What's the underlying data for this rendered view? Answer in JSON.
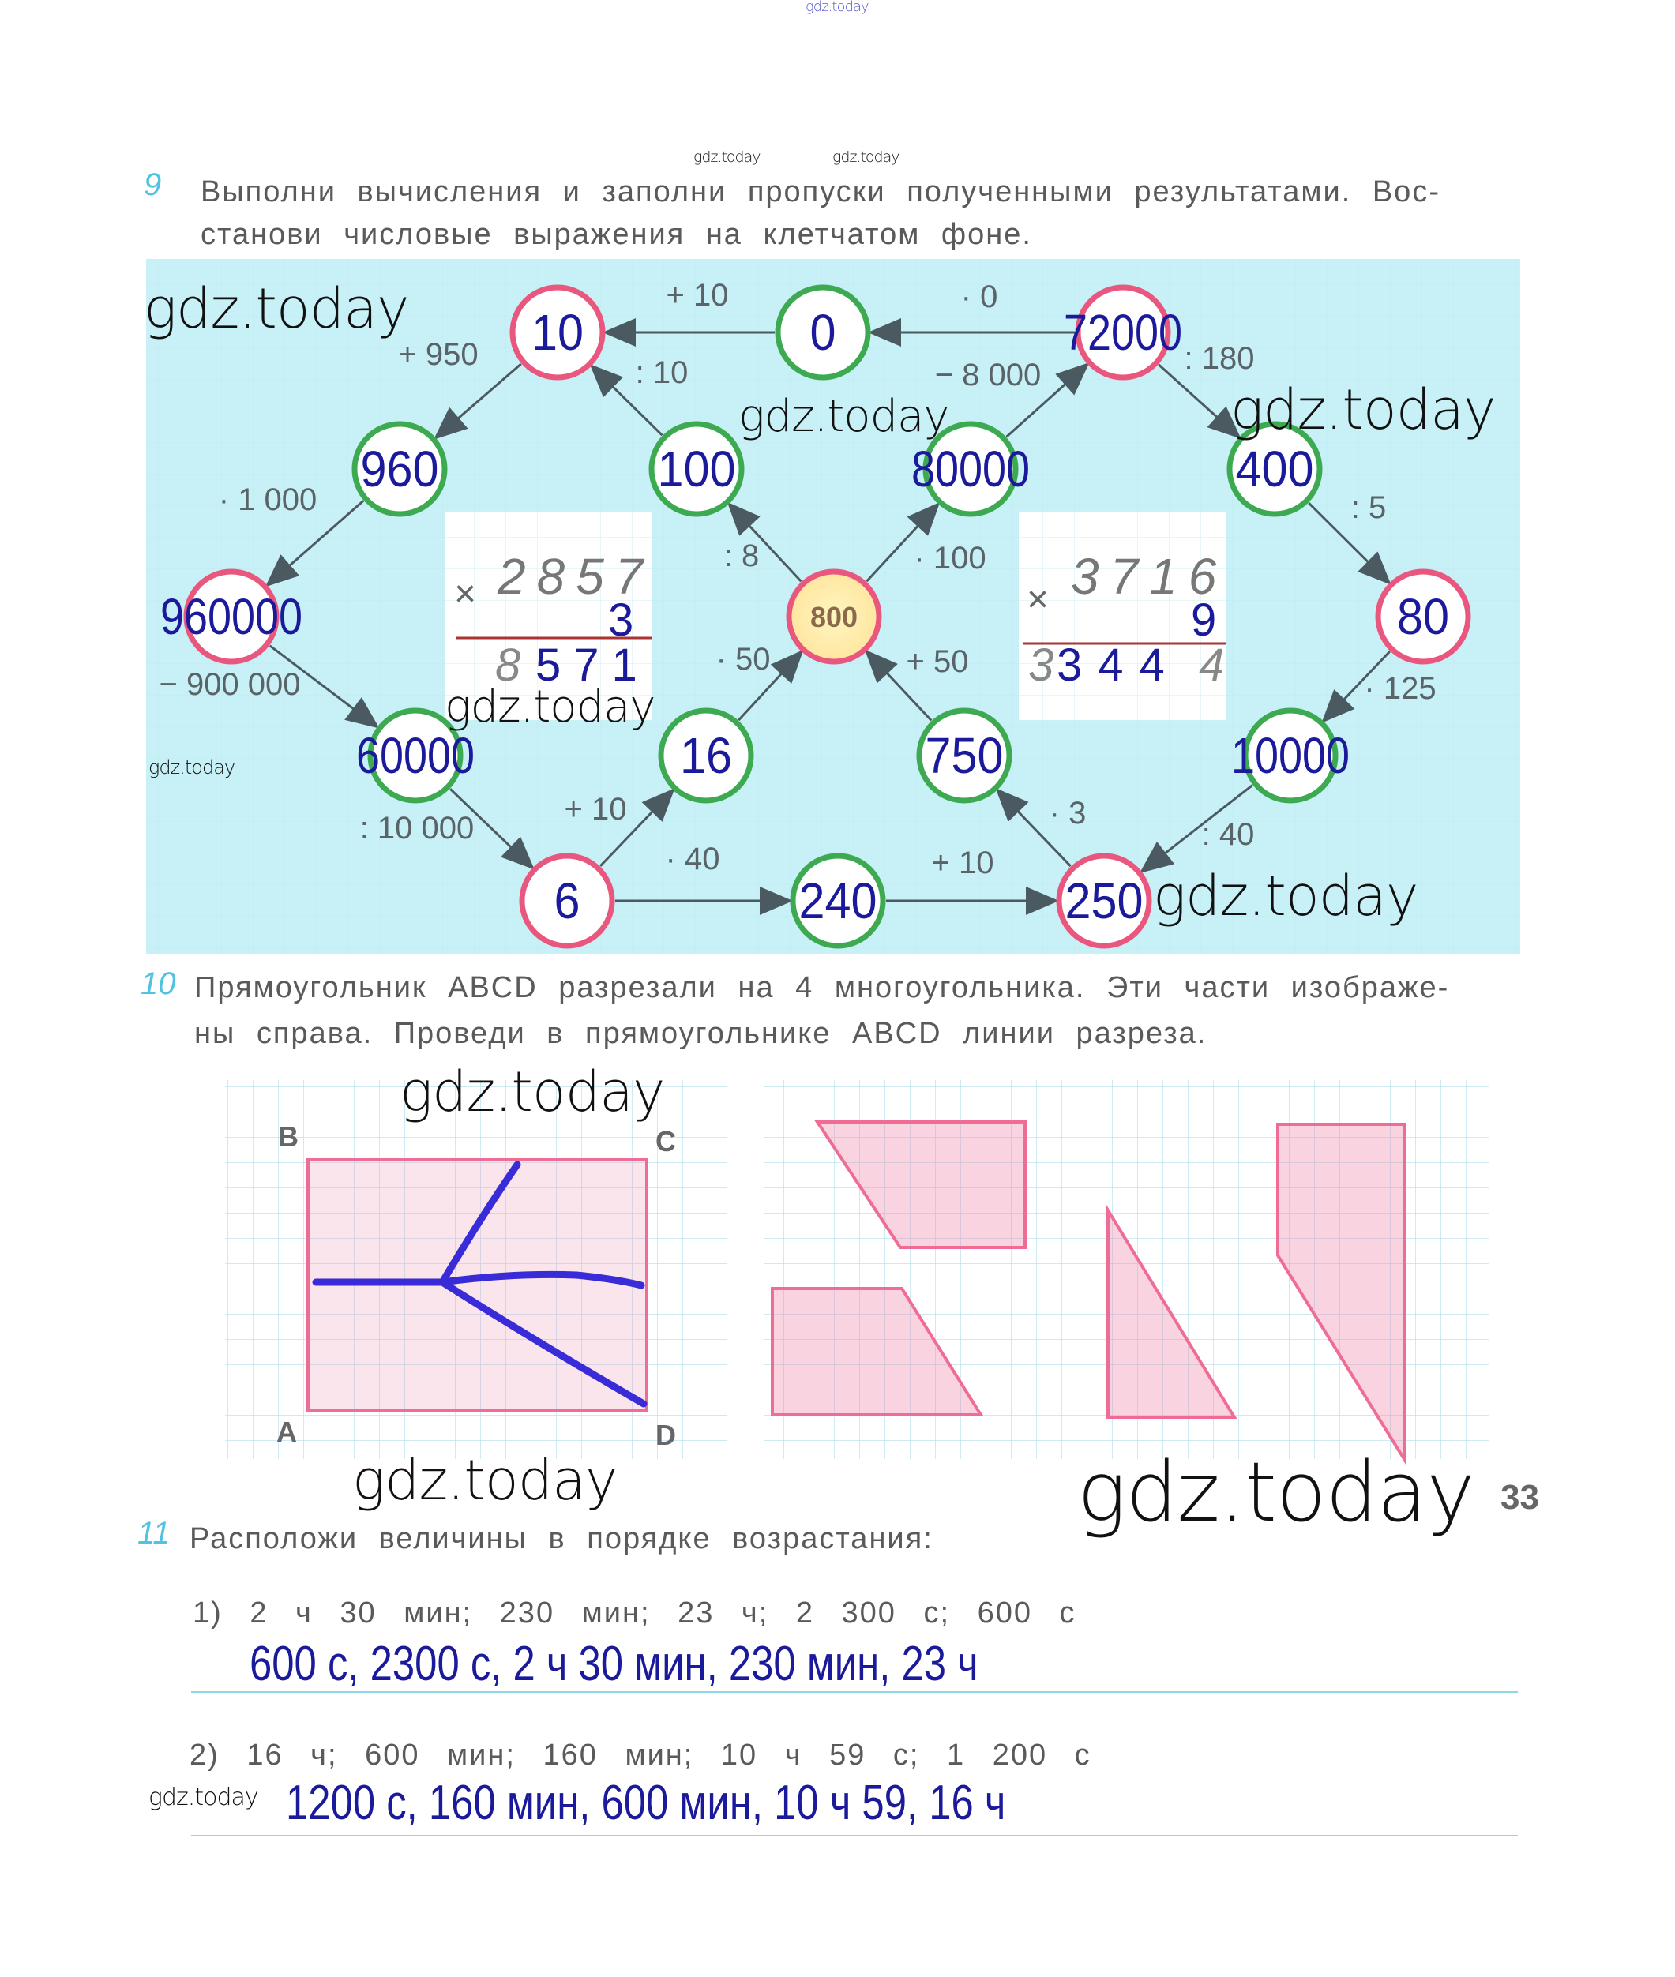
{
  "watermarks": {
    "top": "gdz.today",
    "items": [
      "gdz.today",
      "gdz.today",
      "gdz.today",
      "gdz.today",
      "gdz.today",
      "gdz.today",
      "gdz.today",
      "gdz.today",
      "gdz.today",
      "gdz.today",
      "gdz.today",
      "gdz.today"
    ]
  },
  "task9": {
    "number": "9",
    "line1": "Выполни вычисления и заполни пропуски полученными результатами. Вос-",
    "line2": "станови числовые выражения на клетчатом фоне.",
    "colors": {
      "pink": "#e9577f",
      "green": "#3daa52",
      "answer": "#1a1a9a",
      "background": "#c8f0f7"
    },
    "nodes": [
      {
        "id": "n10",
        "value": "10",
        "ring": "pink"
      },
      {
        "id": "n0",
        "value": "0",
        "ring": "green"
      },
      {
        "id": "n72000",
        "value": "72000",
        "ring": "pink"
      },
      {
        "id": "n960",
        "value": "960",
        "ring": "green"
      },
      {
        "id": "n100",
        "value": "100",
        "ring": "green"
      },
      {
        "id": "n80000",
        "value": "80000",
        "ring": "green"
      },
      {
        "id": "n400",
        "value": "400",
        "ring": "green"
      },
      {
        "id": "n960000",
        "value": "960000",
        "ring": "pink"
      },
      {
        "id": "n800",
        "value": "800",
        "ring": "pink"
      },
      {
        "id": "n80",
        "value": "80",
        "ring": "pink"
      },
      {
        "id": "n60000",
        "value": "60000",
        "ring": "green"
      },
      {
        "id": "n16",
        "value": "16",
        "ring": "green"
      },
      {
        "id": "n750",
        "value": "750",
        "ring": "green"
      },
      {
        "id": "n10000",
        "value": "10000",
        "ring": "green"
      },
      {
        "id": "n6",
        "value": "6",
        "ring": "pink"
      },
      {
        "id": "n240",
        "value": "240",
        "ring": "green"
      },
      {
        "id": "n250",
        "value": "250",
        "ring": "pink"
      }
    ],
    "edges": [
      {
        "from": "n72000",
        "to": "n0",
        "label": "· 0"
      },
      {
        "from": "n0",
        "to": "n10",
        "label": "+ 10"
      },
      {
        "from": "n10",
        "to": "n960",
        "label": "+ 950"
      },
      {
        "from": "n960",
        "to": "n960000",
        "label": "· 1 000"
      },
      {
        "from": "n960000",
        "to": "n60000",
        "label": "− 900 000"
      },
      {
        "from": "n60000",
        "to": "n6",
        "label": ": 10 000"
      },
      {
        "from": "n6",
        "to": "n16",
        "label": "+ 10"
      },
      {
        "from": "n6",
        "to": "n240",
        "label": "· 40"
      },
      {
        "from": "n240",
        "to": "n250",
        "label": "+ 10"
      },
      {
        "from": "n16",
        "to": "n800",
        "label": "· 50"
      },
      {
        "from": "n800",
        "to": "n100",
        "label": ": 8"
      },
      {
        "from": "n100",
        "to": "n10",
        "label": ": 10"
      },
      {
        "from": "n800",
        "to": "n80000",
        "label": "· 100"
      },
      {
        "from": "n80000",
        "to": "n72000",
        "label": "− 8 000"
      },
      {
        "from": "n72000",
        "to": "n400",
        "label": ": 180"
      },
      {
        "from": "n400",
        "to": "n80",
        "label": ": 5"
      },
      {
        "from": "n80",
        "to": "n10000",
        "label": "· 125"
      },
      {
        "from": "n10000",
        "to": "n250",
        "label": ": 40"
      },
      {
        "from": "n250",
        "to": "n750",
        "label": "· 3"
      },
      {
        "from": "n750",
        "to": "n800",
        "label": "+ 50"
      }
    ],
    "mult_left": {
      "sign": "×",
      "top": "2857",
      "factor": "3",
      "result_first": "8",
      "result_rest": "571"
    },
    "mult_right": {
      "sign": "×",
      "top": "3716",
      "factor": "9",
      "result_first": "3",
      "result_rest": "344",
      "result_last": "4"
    }
  },
  "task10": {
    "number": "10",
    "line1": "Прямоугольник ABCD разрезали на 4 многоугольника. Эти части изображе-",
    "line2": "ны справа. Проведи в прямоугольнике ABCD линии разреза.",
    "labels": {
      "A": "A",
      "B": "B",
      "C": "C",
      "D": "D"
    }
  },
  "page_number": "33",
  "task11": {
    "number": "11",
    "header": "Расположи величины в порядке возрастания:",
    "items": [
      {
        "prompt": "1) 2 ч 30 мин; 230 мин; 23 ч; 2 300 с; 600 с",
        "answer": "600 с, 2300 с, 2 ч 30 мин, 230 мин, 23 ч"
      },
      {
        "prompt": "2) 16 ч; 600 мин; 160 мин; 10 ч 59 с; 1 200 с",
        "answer": "1200 с, 160 мин, 600 мин, 10 ч 59,  16 ч"
      }
    ]
  }
}
